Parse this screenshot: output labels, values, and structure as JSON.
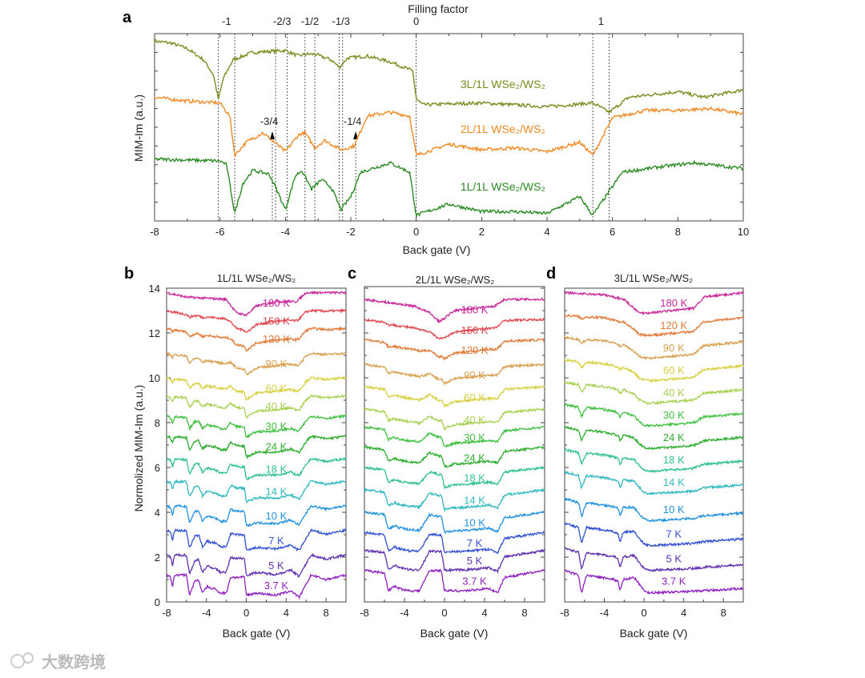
{
  "watermark": "大数跨境",
  "chart_data": [
    {
      "panel": "a",
      "type": "line",
      "top_axis_title": "Filling factor",
      "xlabel": "Back gate (V)",
      "ylabel": "MIM-Im (a.u.)",
      "xlim": [
        -8,
        10
      ],
      "ylim": [
        0,
        10
      ],
      "xticks": [
        -8,
        -6,
        -4,
        -2,
        0,
        2,
        4,
        6,
        8,
        10
      ],
      "filling_labels": [
        {
          "label": "-1",
          "x": -5.8
        },
        {
          "label": "-2/3",
          "x": -4.1
        },
        {
          "label": "-1/2",
          "x": -3.25
        },
        {
          "label": "-1/3",
          "x": -2.3
        },
        {
          "label": "0",
          "x": 0
        },
        {
          "label": "1",
          "x": 5.65
        }
      ],
      "dashed_lines_x": [
        -6.05,
        -5.55,
        -4.3,
        -3.95,
        -3.4,
        -3.1,
        -2.35,
        -2.25,
        0,
        5.4,
        5.9
      ],
      "arrow_annotations": [
        {
          "label": "-3/4",
          "x": -4.4
        },
        {
          "label": "-1/4",
          "x": -1.85
        }
      ],
      "series": [
        {
          "name": "3L/1L  WSe₂/WS₂",
          "color": "#7f8a1e",
          "points": [
            [
              -8,
              9.6
            ],
            [
              -7.5,
              9.5
            ],
            [
              -7,
              9.2
            ],
            [
              -6.5,
              8.6
            ],
            [
              -6.2,
              7.8
            ],
            [
              -6.05,
              6.5
            ],
            [
              -5.9,
              7.6
            ],
            [
              -5.6,
              8.6
            ],
            [
              -5,
              9.0
            ],
            [
              -4,
              9.1
            ],
            [
              -3.6,
              8.8
            ],
            [
              -3.4,
              8.9
            ],
            [
              -3.1,
              8.9
            ],
            [
              -2.6,
              8.6
            ],
            [
              -2.35,
              8.2
            ],
            [
              -2.1,
              8.7
            ],
            [
              -1.5,
              8.8
            ],
            [
              -0.8,
              8.5
            ],
            [
              -0.1,
              8.0
            ],
            [
              0,
              6.5
            ],
            [
              0.2,
              6.2
            ],
            [
              2,
              6.3
            ],
            [
              4,
              6.1
            ],
            [
              5.4,
              6.3
            ],
            [
              5.9,
              5.8
            ],
            [
              6.5,
              6.6
            ],
            [
              8,
              6.9
            ],
            [
              8.8,
              6.6
            ],
            [
              10,
              7.0
            ]
          ]
        },
        {
          "name": "2L/1L  WSe₂/WS₂",
          "color": "#f08a24",
          "points": [
            [
              -8,
              6.6
            ],
            [
              -7,
              6.4
            ],
            [
              -6,
              6.3
            ],
            [
              -5.7,
              5.6
            ],
            [
              -5.55,
              3.5
            ],
            [
              -5.2,
              4.2
            ],
            [
              -4.7,
              4.7
            ],
            [
              -4.4,
              4.3
            ],
            [
              -4.0,
              3.7
            ],
            [
              -3.6,
              4.6
            ],
            [
              -3.4,
              4.7
            ],
            [
              -3.1,
              3.9
            ],
            [
              -2.8,
              4.3
            ],
            [
              -2.3,
              3.8
            ],
            [
              -1.9,
              4.0
            ],
            [
              -1.5,
              5.6
            ],
            [
              -0.8,
              5.8
            ],
            [
              -0.2,
              5.6
            ],
            [
              0,
              3.5
            ],
            [
              1,
              4.1
            ],
            [
              2,
              3.8
            ],
            [
              3,
              3.9
            ],
            [
              4,
              3.7
            ],
            [
              5,
              4.2
            ],
            [
              5.4,
              3.5
            ],
            [
              6,
              5.5
            ],
            [
              7,
              5.9
            ],
            [
              8,
              5.9
            ],
            [
              9,
              6.0
            ],
            [
              10,
              5.7
            ]
          ]
        },
        {
          "name": "1L/1L  WSe₂/WS₂",
          "color": "#2a8a22",
          "points": [
            [
              -8,
              3.3
            ],
            [
              -6,
              3.2
            ],
            [
              -5.8,
              3.0
            ],
            [
              -5.55,
              0.4
            ],
            [
              -5.3,
              2.0
            ],
            [
              -5,
              2.7
            ],
            [
              -4.5,
              2.5
            ],
            [
              -4.3,
              1.8
            ],
            [
              -4.0,
              0.6
            ],
            [
              -3.7,
              2.4
            ],
            [
              -3.5,
              2.7
            ],
            [
              -3.2,
              1.7
            ],
            [
              -2.9,
              2.2
            ],
            [
              -2.6,
              1.8
            ],
            [
              -2.3,
              0.6
            ],
            [
              -2.0,
              1.3
            ],
            [
              -1.7,
              2.6
            ],
            [
              -0.8,
              3.1
            ],
            [
              -0.2,
              2.6
            ],
            [
              0,
              0.3
            ],
            [
              1,
              0.9
            ],
            [
              2,
              0.5
            ],
            [
              3,
              0.5
            ],
            [
              4,
              0.4
            ],
            [
              5,
              1.3
            ],
            [
              5.4,
              0.3
            ],
            [
              6.3,
              2.6
            ],
            [
              7.5,
              2.9
            ],
            [
              8.5,
              3.1
            ],
            [
              10,
              2.8
            ]
          ]
        }
      ]
    },
    {
      "panel": "b",
      "type": "line",
      "title": "1L/1L  WSe₂/WS₂",
      "xlabel": "Back gate (V)",
      "ylabel": "Normolized MIM-Im (a.u.)",
      "xlim": [
        -8,
        10
      ],
      "ylim": [
        0,
        14
      ],
      "xticks": [
        -8,
        -4,
        0,
        4,
        8
      ],
      "yticks": [
        0,
        2,
        4,
        6,
        8,
        10,
        12,
        14
      ],
      "temperatures": [
        "180 K",
        "150 K",
        "120 K",
        "90 K",
        "60 K",
        "40 K",
        "30 K",
        "24 K",
        "18 K",
        "14 K",
        "10 K",
        "7 K",
        "5 K",
        "3.7 K"
      ],
      "offsets": [
        13.8,
        13.0,
        12.2,
        11.1,
        10.0,
        9.2,
        8.3,
        7.4,
        6.4,
        5.4,
        4.3,
        3.2,
        2.1,
        1.2
      ],
      "profile_high_T": [
        [
          -8,
          0
        ],
        [
          -6,
          -0.2
        ],
        [
          -2,
          -0.3
        ],
        [
          -1,
          -0.9
        ],
        [
          0,
          -1.0
        ],
        [
          1,
          -0.6
        ],
        [
          3,
          -0.4
        ],
        [
          5,
          -0.4
        ],
        [
          6,
          0
        ],
        [
          10,
          0
        ]
      ],
      "profile_low_T": [
        [
          -8,
          0
        ],
        [
          -7.6,
          -0.1
        ],
        [
          -7.4,
          -0.5
        ],
        [
          -7.2,
          0
        ],
        [
          -6,
          0
        ],
        [
          -5.7,
          -0.9
        ],
        [
          -5.2,
          -0.3
        ],
        [
          -4.8,
          -0.2
        ],
        [
          -4.4,
          -0.8
        ],
        [
          -3.9,
          -0.5
        ],
        [
          -3.6,
          -0.6
        ],
        [
          -3.2,
          -0.6
        ],
        [
          -2.6,
          -0.8
        ],
        [
          -2,
          -0.8
        ],
        [
          -1.6,
          -0.1
        ],
        [
          -0.2,
          -0.1
        ],
        [
          0,
          -0.9
        ],
        [
          1,
          -0.8
        ],
        [
          3,
          -0.9
        ],
        [
          4.5,
          -0.7
        ],
        [
          5.3,
          -1.0
        ],
        [
          6.5,
          0
        ],
        [
          8,
          -0.2
        ],
        [
          10,
          0
        ]
      ]
    },
    {
      "panel": "c",
      "type": "line",
      "title": "2L/1L  WSe₂/WS₂",
      "xlabel": "Back gate (V)",
      "xlim": [
        -8,
        10
      ],
      "ylim": [
        0,
        14
      ],
      "xticks": [
        -8,
        -4,
        0,
        4,
        8
      ],
      "temperatures": [
        "180 K",
        "150 K",
        "120 K",
        "90 K",
        "60 K",
        "40 K",
        "30 K",
        "24 K",
        "18 K",
        "14 K",
        "10 K",
        "7 K",
        "5 K",
        "3.7 K"
      ],
      "offsets": [
        13.5,
        12.6,
        11.7,
        10.6,
        9.6,
        8.6,
        7.8,
        6.9,
        6.0,
        5.0,
        4.0,
        3.1,
        2.3,
        1.4
      ],
      "profile_high_T": [
        [
          -8,
          0
        ],
        [
          -3,
          -0.3
        ],
        [
          -1.5,
          -0.6
        ],
        [
          -0.5,
          -1.0
        ],
        [
          1,
          -0.5
        ],
        [
          5,
          -0.3
        ],
        [
          6,
          0
        ],
        [
          10,
          0
        ]
      ],
      "profile_low_T": [
        [
          -8,
          0
        ],
        [
          -6,
          -0.1
        ],
        [
          -5.6,
          -0.9
        ],
        [
          -5,
          -0.7
        ],
        [
          -4.5,
          -0.8
        ],
        [
          -3.5,
          -0.9
        ],
        [
          -2.5,
          -0.9
        ],
        [
          -1.5,
          0
        ],
        [
          -0.3,
          0
        ],
        [
          0,
          -0.9
        ],
        [
          2,
          -0.9
        ],
        [
          4.5,
          -0.8
        ],
        [
          5.3,
          -1.0
        ],
        [
          6,
          -0.3
        ],
        [
          10,
          0
        ]
      ]
    },
    {
      "panel": "d",
      "type": "line",
      "title": "3L/1L  WSe₂/WS₂",
      "xlabel": "Back gate (V)",
      "xlim": [
        -8,
        10
      ],
      "ylim": [
        0,
        14
      ],
      "xticks": [
        -8,
        -4,
        0,
        4,
        8
      ],
      "temperatures": [
        "180 K",
        "120 K",
        "90 K",
        "60 K",
        "40 K",
        "30 K",
        "24 K",
        "18 K",
        "14 K",
        "10 K",
        "7 K",
        "5 K",
        "3.7 K"
      ],
      "offsets": [
        13.8,
        12.8,
        11.8,
        10.8,
        9.8,
        8.8,
        7.8,
        6.8,
        5.8,
        4.6,
        3.5,
        2.4,
        1.4
      ],
      "profile_high_T": [
        [
          -8,
          0
        ],
        [
          -4,
          -0.1
        ],
        [
          -2,
          -0.3
        ],
        [
          -0.5,
          -0.9
        ],
        [
          0.5,
          -0.9
        ],
        [
          5,
          -0.7
        ],
        [
          6,
          -0.2
        ],
        [
          10,
          0
        ]
      ],
      "profile_low_T": [
        [
          -8,
          0
        ],
        [
          -6.6,
          -0.2
        ],
        [
          -6.3,
          -1.0
        ],
        [
          -5.8,
          -0.2
        ],
        [
          -3,
          -0.4
        ],
        [
          -2.6,
          -0.5
        ],
        [
          -2.4,
          -0.9
        ],
        [
          -2.1,
          -0.4
        ],
        [
          -1,
          -0.3
        ],
        [
          0,
          -0.9
        ],
        [
          0.5,
          -1.0
        ],
        [
          6,
          -0.9
        ],
        [
          10,
          -0.8
        ]
      ]
    }
  ],
  "temperature_colors": {
    "180 K": "#c8289a",
    "150 K": "#e04850",
    "120 K": "#e07b3a",
    "90 K": "#d9a050",
    "60 K": "#d8d040",
    "40 K": "#a8d050",
    "30 K": "#40c040",
    "24 K": "#2fae2f",
    "18 K": "#30c090",
    "14 K": "#30b8c0",
    "10 K": "#2090e0",
    "7 K": "#3050d0",
    "5 K": "#6030b0",
    "3.7 K": "#9020c0"
  }
}
